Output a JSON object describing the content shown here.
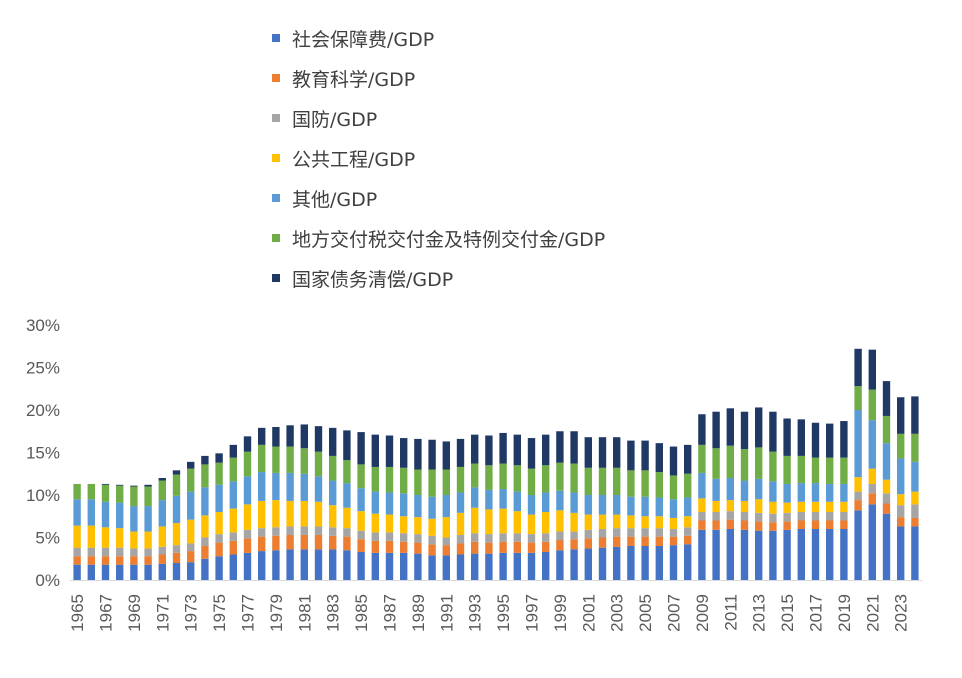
{
  "chart_data": {
    "type": "bar",
    "stacked": true,
    "title": "",
    "xlabel": "",
    "ylabel": "",
    "ylim": [
      0,
      30
    ],
    "yticks": [
      "0%",
      "5%",
      "10%",
      "15%",
      "20%",
      "25%",
      "30%"
    ],
    "legend_position": "top",
    "grid": false,
    "categories": [
      1965,
      1966,
      1967,
      1968,
      1969,
      1970,
      1971,
      1972,
      1973,
      1974,
      1975,
      1976,
      1977,
      1978,
      1979,
      1980,
      1981,
      1982,
      1983,
      1984,
      1985,
      1986,
      1987,
      1988,
      1989,
      1990,
      1991,
      1992,
      1993,
      1994,
      1995,
      1996,
      1997,
      1998,
      1999,
      2000,
      2001,
      2002,
      2003,
      2004,
      2005,
      2006,
      2007,
      2008,
      2009,
      2010,
      2011,
      2012,
      2013,
      2014,
      2015,
      2016,
      2017,
      2018,
      2019,
      2020,
      2021,
      2022,
      2023,
      2024
    ],
    "xtick_labels": [
      "1965",
      "1967",
      "1969",
      "1971",
      "1973",
      "1975",
      "1977",
      "1979",
      "1981",
      "1983",
      "1985",
      "1987",
      "1989",
      "1991",
      "1993",
      "1995",
      "1997",
      "1999",
      "2001",
      "2003",
      "2005",
      "2007",
      "2009",
      "2011",
      "2013",
      "2015",
      "2017",
      "2019",
      "2021",
      "2023"
    ],
    "series": [
      {
        "name": "社会保障费/GDP",
        "color": "#4472C4",
        "values": [
          1.8,
          1.8,
          1.8,
          1.8,
          1.8,
          1.8,
          1.9,
          2.0,
          2.1,
          2.5,
          2.8,
          3.0,
          3.2,
          3.4,
          3.5,
          3.6,
          3.6,
          3.6,
          3.6,
          3.5,
          3.3,
          3.2,
          3.2,
          3.2,
          3.1,
          2.9,
          2.9,
          3.0,
          3.1,
          3.1,
          3.2,
          3.2,
          3.2,
          3.3,
          3.5,
          3.6,
          3.7,
          3.8,
          3.9,
          4.0,
          4.0,
          4.0,
          4.1,
          4.2,
          5.9,
          5.9,
          6.0,
          5.9,
          5.8,
          5.8,
          5.9,
          6.0,
          6.0,
          6.0,
          6.0,
          8.2,
          8.9,
          7.8,
          6.3,
          6.3
        ]
      },
      {
        "name": "教育科学/GDP",
        "color": "#ED7D31",
        "values": [
          1.0,
          1.0,
          1.0,
          1.0,
          1.0,
          1.0,
          1.1,
          1.2,
          1.3,
          1.5,
          1.6,
          1.6,
          1.7,
          1.7,
          1.7,
          1.7,
          1.7,
          1.7,
          1.6,
          1.6,
          1.5,
          1.4,
          1.4,
          1.3,
          1.3,
          1.3,
          1.2,
          1.3,
          1.4,
          1.3,
          1.3,
          1.3,
          1.2,
          1.2,
          1.2,
          1.2,
          1.2,
          1.2,
          1.2,
          1.1,
          1.1,
          1.1,
          1.0,
          1.0,
          1.1,
          1.1,
          1.1,
          1.1,
          1.1,
          1.0,
          1.0,
          1.0,
          1.0,
          1.0,
          1.0,
          1.2,
          1.3,
          1.2,
          1.1,
          1.0
        ]
      },
      {
        "name": "国防/GDP",
        "color": "#A5A5A5",
        "values": [
          1.0,
          1.0,
          1.0,
          1.0,
          0.9,
          0.9,
          0.9,
          0.9,
          0.9,
          1.0,
          1.0,
          1.0,
          1.0,
          1.0,
          1.0,
          1.0,
          1.0,
          1.0,
          1.0,
          1.0,
          1.0,
          1.0,
          1.0,
          1.0,
          1.0,
          1.0,
          0.9,
          1.0,
          1.0,
          1.0,
          1.0,
          1.0,
          1.0,
          1.0,
          1.0,
          0.9,
          1.0,
          1.0,
          1.0,
          1.0,
          1.0,
          1.0,
          0.9,
          1.0,
          1.0,
          1.0,
          1.0,
          1.0,
          1.0,
          1.0,
          1.0,
          1.0,
          1.0,
          1.0,
          1.0,
          1.0,
          1.1,
          1.2,
          1.4,
          1.6
        ]
      },
      {
        "name": "公共工程/GDP",
        "color": "#FFC000",
        "values": [
          2.6,
          2.6,
          2.4,
          2.3,
          2.0,
          2.0,
          2.4,
          2.6,
          2.8,
          2.6,
          2.6,
          2.8,
          3.0,
          3.2,
          3.2,
          3.0,
          3.0,
          2.9,
          2.6,
          2.4,
          2.3,
          2.2,
          2.1,
          2.0,
          2.0,
          2.0,
          2.4,
          2.6,
          3.0,
          2.9,
          2.9,
          2.6,
          2.3,
          2.5,
          2.5,
          2.2,
          1.8,
          1.7,
          1.6,
          1.5,
          1.4,
          1.4,
          1.3,
          1.3,
          1.6,
          1.3,
          1.3,
          1.3,
          1.6,
          1.4,
          1.2,
          1.2,
          1.2,
          1.2,
          1.2,
          1.7,
          1.8,
          1.6,
          1.3,
          1.5
        ]
      },
      {
        "name": "其他/GDP",
        "color": "#5B9BD5",
        "values": [
          3.1,
          3.1,
          3.0,
          3.0,
          3.0,
          3.0,
          3.1,
          3.2,
          3.3,
          3.3,
          3.2,
          3.2,
          3.3,
          3.4,
          3.2,
          3.3,
          3.2,
          3.0,
          2.9,
          2.9,
          2.7,
          2.6,
          2.6,
          2.7,
          2.6,
          2.6,
          2.6,
          2.4,
          2.4,
          2.3,
          2.3,
          2.3,
          2.3,
          2.3,
          2.3,
          2.4,
          2.3,
          2.3,
          2.3,
          2.2,
          2.3,
          2.2,
          2.2,
          2.2,
          3.0,
          2.6,
          2.6,
          2.4,
          2.4,
          2.4,
          2.2,
          2.2,
          2.2,
          2.1,
          2.1,
          7.9,
          5.7,
          4.3,
          4.2,
          3.5
        ]
      },
      {
        "name": "地方交付税交付金及特例交付金/GDP",
        "color": "#70AD47",
        "values": [
          1.8,
          1.8,
          2.0,
          2.0,
          2.3,
          2.3,
          2.3,
          2.5,
          2.7,
          2.7,
          2.6,
          2.8,
          2.9,
          3.2,
          3.1,
          3.1,
          3.0,
          2.9,
          2.9,
          2.7,
          2.8,
          2.9,
          3.0,
          3.0,
          3.0,
          3.2,
          3.0,
          3.0,
          2.8,
          2.9,
          3.0,
          3.1,
          3.1,
          3.2,
          3.3,
          3.4,
          3.2,
          3.2,
          3.2,
          3.1,
          3.1,
          3.0,
          2.8,
          2.8,
          3.3,
          3.6,
          3.8,
          3.7,
          3.7,
          3.5,
          3.3,
          3.2,
          3.0,
          3.1,
          3.1,
          2.8,
          3.6,
          3.2,
          2.9,
          3.3
        ]
      },
      {
        "name": "国家债务清偿/GDP",
        "color": "#1F3864",
        "values": [
          0.0,
          0.0,
          0.1,
          0.1,
          0.1,
          0.2,
          0.3,
          0.5,
          0.8,
          1.0,
          1.1,
          1.5,
          1.8,
          2.0,
          2.3,
          2.5,
          2.8,
          3.0,
          3.3,
          3.5,
          3.8,
          3.8,
          3.7,
          3.5,
          3.6,
          3.5,
          3.3,
          3.3,
          3.4,
          3.5,
          3.6,
          3.6,
          3.6,
          3.6,
          3.7,
          3.8,
          3.6,
          3.6,
          3.6,
          3.5,
          3.5,
          3.4,
          3.4,
          3.4,
          3.6,
          4.3,
          4.4,
          4.4,
          4.7,
          4.7,
          4.4,
          4.3,
          4.1,
          4.0,
          4.3,
          4.4,
          4.7,
          4.1,
          4.3,
          4.4
        ]
      }
    ]
  }
}
